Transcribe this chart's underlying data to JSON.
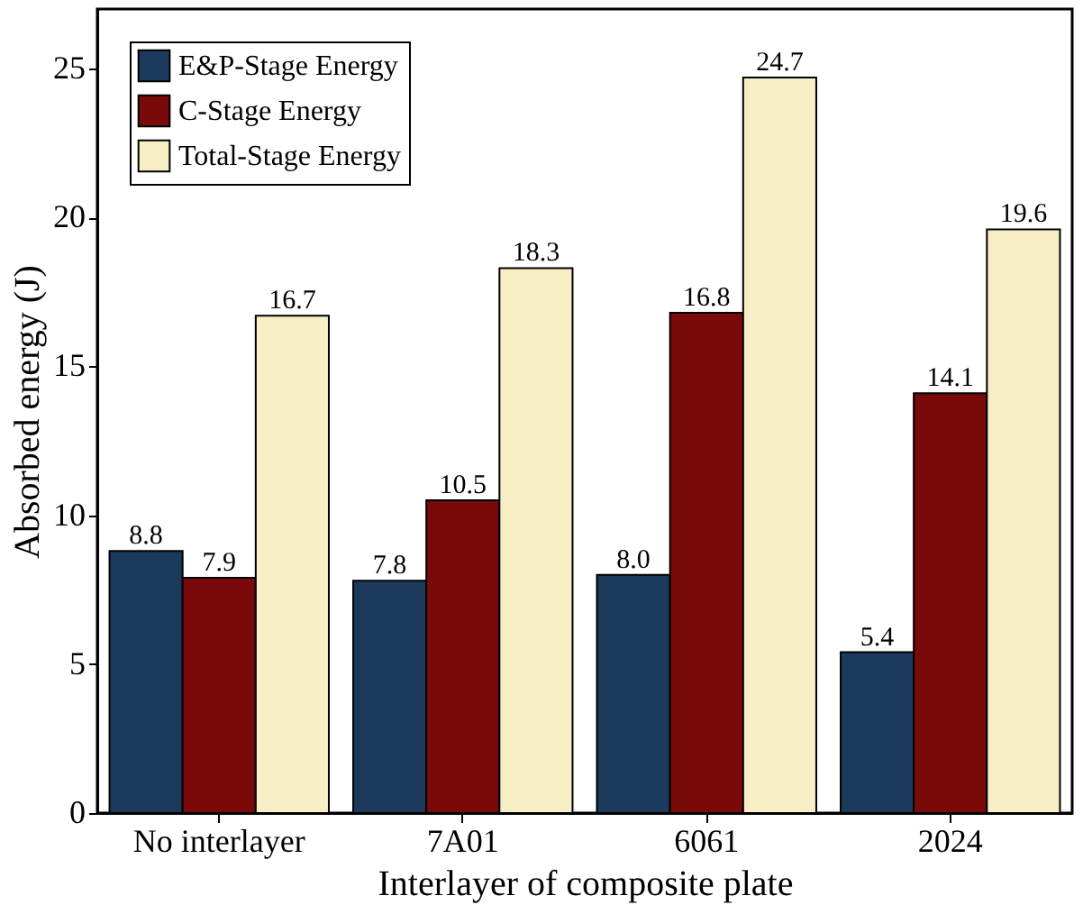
{
  "chart_data": {
    "type": "bar",
    "xlabel": "Interlayer of composite plate",
    "ylabel": "Absorbed energy (J)",
    "categories": [
      "No interlayer",
      "7A01",
      "6061",
      "2024"
    ],
    "series": [
      {
        "name": "E&P-Stage Energy",
        "color": "#1b3a5c",
        "values": [
          8.8,
          7.8,
          8.0,
          5.4
        ],
        "value_labels": [
          "8.8",
          "7.8",
          "8.0",
          "5.4"
        ]
      },
      {
        "name": "C-Stage Energy",
        "color": "#7a0a0a",
        "values": [
          7.9,
          10.5,
          16.8,
          14.1
        ],
        "value_labels": [
          "7.9",
          "10.5",
          "16.8",
          "14.1"
        ]
      },
      {
        "name": "Total-Stage Energy",
        "color": "#f7eec6",
        "values": [
          16.7,
          18.3,
          24.7,
          19.6
        ],
        "value_labels": [
          "16.7",
          "18.3",
          "24.7",
          "19.6"
        ]
      }
    ],
    "ylim": [
      0,
      27
    ],
    "yticks": [
      0,
      5,
      10,
      15,
      20,
      25
    ],
    "legend": "top left",
    "grid": false
  }
}
